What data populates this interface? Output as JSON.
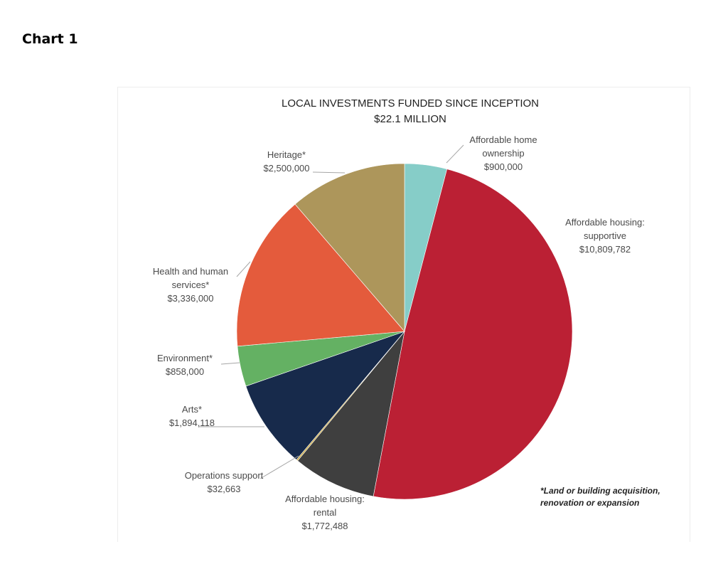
{
  "page": {
    "heading": "Chart 1"
  },
  "chart_data": {
    "type": "pie",
    "title": "LOCAL INVESTMENTS FUNDED SINCE INCEPTION",
    "subtitle": "$22.1 MILLION",
    "footnote": [
      "*Land or building acquisition,",
      "renovation or expansion"
    ],
    "slices": [
      {
        "name": "Affordable home ownership",
        "label_lines": [
          "Affordable home",
          "ownership"
        ],
        "value": 900000,
        "value_label": "$900,000",
        "color": "#86cdc8"
      },
      {
        "name": "Affordable housing: supportive",
        "label_lines": [
          "Affordable housing:",
          "supportive"
        ],
        "value": 10809782,
        "value_label": "$10,809,782",
        "color": "#bb2034"
      },
      {
        "name": "Affordable housing: rental",
        "label_lines": [
          "Affordable housing:",
          "rental"
        ],
        "value": 1772488,
        "value_label": "$1,772,488",
        "color": "#3f3f3f"
      },
      {
        "name": "Operations support",
        "label_lines": [
          "Operations support"
        ],
        "value": 32663,
        "value_label": "$32,663",
        "color": "#c9a73e"
      },
      {
        "name": "Arts*",
        "label_lines": [
          "Arts*"
        ],
        "value": 1894118,
        "value_label": "$1,894,118",
        "color": "#172a4b"
      },
      {
        "name": "Environment*",
        "label_lines": [
          "Environment*"
        ],
        "value": 858000,
        "value_label": "$858,000",
        "color": "#64b163"
      },
      {
        "name": "Health and human services*",
        "label_lines": [
          "Health and human",
          "services*"
        ],
        "value": 3336000,
        "value_label": "$3,336,000",
        "color": "#e45b3c"
      },
      {
        "name": "Heritage*",
        "label_lines": [
          "Heritage*"
        ],
        "value": 2500000,
        "value_label": "$2,500,000",
        "color": "#ad965b"
      }
    ]
  }
}
